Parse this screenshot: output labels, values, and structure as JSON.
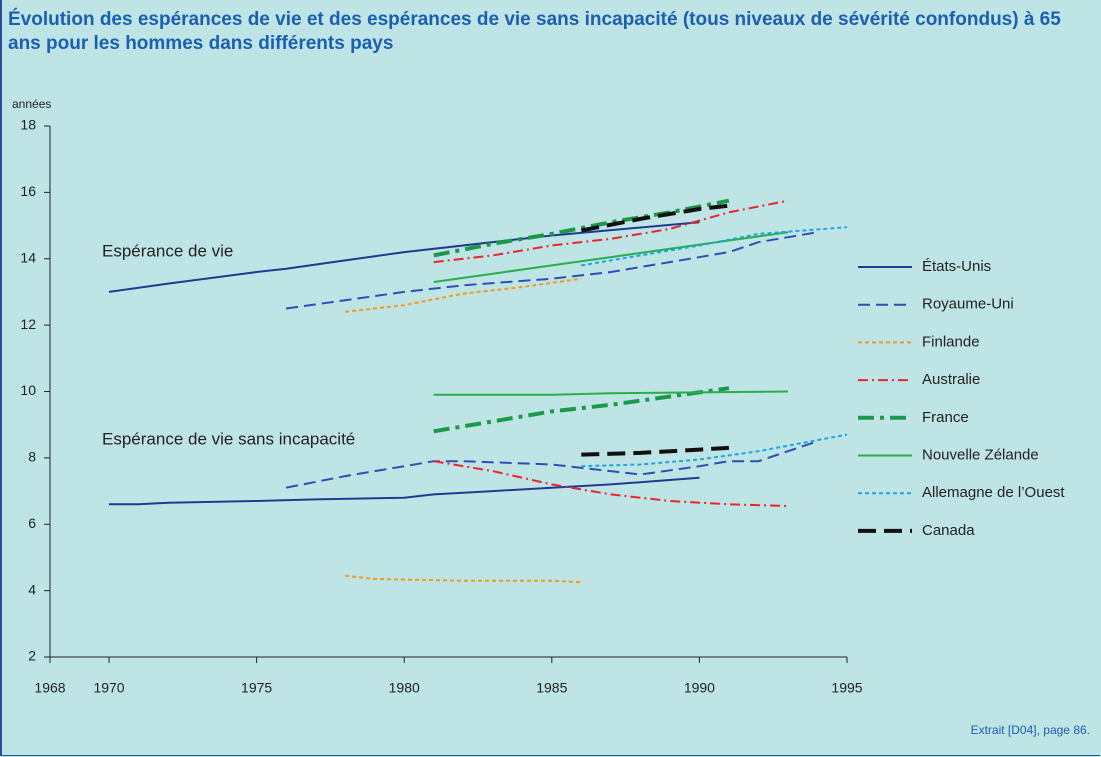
{
  "chart_data": {
    "type": "line",
    "title": "Évolution des espérances de vie et des espérances de vie sans incapacité (tous niveaux de sévérité confondus) à 65 ans pour les hommes dans différents pays",
    "y_label": "années",
    "annotations": [
      "Espérance de vie",
      "Espérance de vie sans incapacité"
    ],
    "source": "Extrait [D04], page 86.",
    "xlim": [
      1968,
      1995
    ],
    "xticks": [
      1968,
      1970,
      1975,
      1980,
      1985,
      1990,
      1995
    ],
    "ylim": [
      2,
      18
    ],
    "yticks": [
      2,
      4,
      6,
      8,
      10,
      12,
      14,
      16,
      18
    ],
    "series": [
      {
        "name": "États-Unis",
        "color": "#1f3a8f",
        "dash": "solid",
        "width": 2,
        "x": [
          1970,
          1972,
          1975,
          1976,
          1978,
          1980,
          1985,
          1990,
          null,
          1970,
          1971,
          1972,
          1975,
          1977,
          1980,
          1981,
          1983,
          1985,
          1987,
          1990
        ],
        "values": [
          13.0,
          13.25,
          13.6,
          13.7,
          13.95,
          14.2,
          14.7,
          15.1,
          null,
          6.6,
          6.6,
          6.65,
          6.7,
          6.75,
          6.8,
          6.9,
          7.0,
          7.1,
          7.2,
          7.4
        ]
      },
      {
        "name": "Royaume-Uni",
        "color": "#2b50b5",
        "dash": "long",
        "width": 2,
        "x": [
          1976,
          1978,
          1980,
          1982,
          1985,
          1987,
          1989,
          1991,
          1992,
          1994,
          null,
          1976,
          1978,
          1980,
          1981,
          1982,
          1985,
          1988,
          1990,
          1991,
          1992,
          1993,
          1994
        ],
        "values": [
          12.5,
          12.75,
          13.0,
          13.2,
          13.4,
          13.6,
          13.9,
          14.2,
          14.5,
          14.8,
          null,
          7.1,
          7.45,
          7.75,
          7.9,
          7.9,
          7.8,
          7.5,
          7.75,
          7.9,
          7.9,
          8.2,
          8.5
        ]
      },
      {
        "name": "Finlande",
        "color": "#f39a1e",
        "dash": "short",
        "width": 2,
        "x": [
          1978,
          1980,
          1982,
          1984,
          1986,
          null,
          1978,
          1979,
          1982,
          1985,
          1986
        ],
        "values": [
          12.4,
          12.6,
          12.95,
          13.15,
          13.4,
          null,
          4.45,
          4.35,
          4.3,
          4.3,
          4.25
        ]
      },
      {
        "name": "Australie",
        "color": "#e8262d",
        "dash": "dashdot",
        "width": 2,
        "x": [
          1981,
          1983,
          1985,
          1987,
          1989,
          1991,
          1993,
          null,
          1981,
          1983,
          1985,
          1987,
          1989,
          1991,
          1993
        ],
        "values": [
          13.9,
          14.1,
          14.4,
          14.6,
          14.9,
          15.4,
          15.75,
          null,
          7.9,
          7.6,
          7.2,
          6.9,
          6.7,
          6.6,
          6.55
        ]
      },
      {
        "name": "France",
        "color": "#1a9a48",
        "dash": "dashdot",
        "width": 4,
        "x": [
          1981,
          1983,
          1985,
          1987,
          1989,
          1991,
          null,
          1981,
          1983,
          1985,
          1987,
          1989,
          1991
        ],
        "values": [
          14.1,
          14.45,
          14.75,
          15.1,
          15.4,
          15.75,
          null,
          8.8,
          9.1,
          9.4,
          9.6,
          9.85,
          10.1
        ]
      },
      {
        "name": "Nouvelle Zélande",
        "color": "#2aae4a",
        "dash": "solid",
        "width": 2,
        "x": [
          1981,
          1983,
          1985,
          1987,
          1989,
          1991,
          1993,
          null,
          1981,
          1985,
          1987,
          1993
        ],
        "values": [
          13.3,
          13.55,
          13.8,
          14.05,
          14.3,
          14.55,
          14.8,
          null,
          9.9,
          9.9,
          9.95,
          10.0
        ]
      },
      {
        "name": "Allemagne de l’Ouest",
        "color": "#1ba6e2",
        "dash": "short",
        "width": 2,
        "x": [
          1986,
          1988,
          1990,
          1992,
          1995,
          null,
          1986,
          1988,
          1990,
          1992,
          1995
        ],
        "values": [
          13.8,
          14.1,
          14.4,
          14.75,
          14.95,
          null,
          7.75,
          7.8,
          7.95,
          8.2,
          8.7
        ]
      },
      {
        "name": "Canada",
        "color": "#111111",
        "dash": "long",
        "width": 4,
        "x": [
          1986,
          1988,
          1990,
          1991,
          null,
          1986,
          1988,
          1990,
          1991
        ],
        "values": [
          14.85,
          15.2,
          15.5,
          15.6,
          null,
          8.1,
          8.15,
          8.25,
          8.3
        ]
      }
    ]
  }
}
